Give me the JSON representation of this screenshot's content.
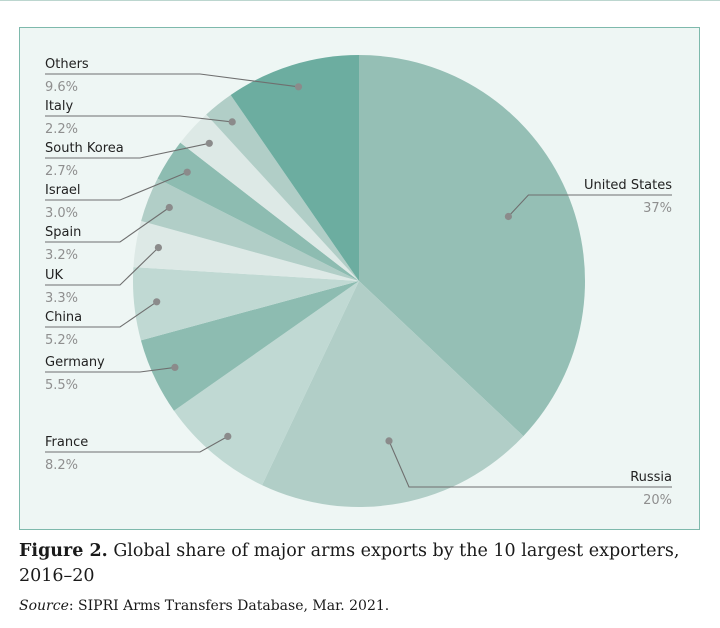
{
  "chart_data": {
    "type": "pie",
    "title": "Global share of major arms exports by the 10 largest exporters, 2016–20",
    "start_angle_deg": 0,
    "direction": "clockwise",
    "slices": [
      {
        "name": "United States",
        "label": "37%",
        "value": 37,
        "color": "#95bfb5"
      },
      {
        "name": "Russia",
        "label": "20%",
        "value": 20,
        "color": "#b1cec7"
      },
      {
        "name": "France",
        "label": "8.2%",
        "value": 8.2,
        "color": "#c0d9d3"
      },
      {
        "name": "Germany",
        "label": "5.5%",
        "value": 5.5,
        "color": "#8dbcb1"
      },
      {
        "name": "China",
        "label": "5.2%",
        "value": 5.2,
        "color": "#c0d9d3"
      },
      {
        "name": "UK",
        "label": "3.3%",
        "value": 3.3,
        "color": "#dde9e6"
      },
      {
        "name": "Spain",
        "label": "3.2%",
        "value": 3.2,
        "color": "#b1cec7"
      },
      {
        "name": "Israel",
        "label": "3.0%",
        "value": 3.0,
        "color": "#8dbcb1"
      },
      {
        "name": "South Korea",
        "label": "2.7%",
        "value": 2.7,
        "color": "#dde9e6"
      },
      {
        "name": "Italy",
        "label": "2.2%",
        "value": 2.2,
        "color": "#b1cec7"
      },
      {
        "name": "Others",
        "label": "9.6%",
        "value": 9.6,
        "color": "#6cada0"
      }
    ]
  },
  "caption": {
    "figure_label": "Figure 2.",
    "text": " Global share of major arms exports by the 10 largest exporters, 2016–20"
  },
  "source": {
    "label": "Source",
    "text": ": SIPRI Arms Transfers Database, Mar. 2021."
  }
}
